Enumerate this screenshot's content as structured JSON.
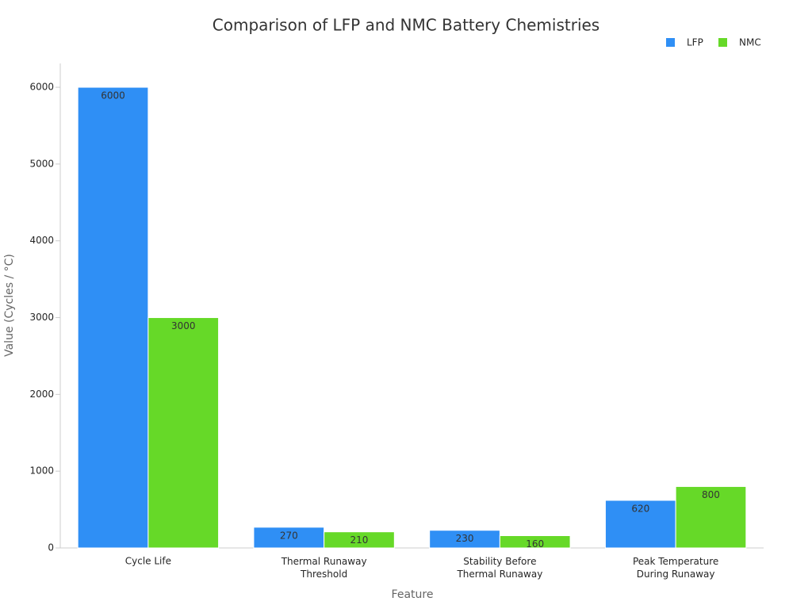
{
  "chart_data": {
    "type": "bar",
    "title": "Comparison of LFP and NMC Battery Chemistries",
    "x_label": "Feature",
    "y_label": "Value (Cycles / °C)",
    "categories": [
      "Cycle Life",
      "Thermal Runaway\nThreshold",
      "Stability Before\nThermal Runaway",
      "Peak Temperature\nDuring Runaway"
    ],
    "series": [
      {
        "name": "LFP",
        "color": "#2f8ff5",
        "values": [
          6000,
          270,
          230,
          620
        ]
      },
      {
        "name": "NMC",
        "color": "#66d928",
        "values": [
          3000,
          210,
          160,
          800
        ]
      }
    ],
    "ylim": [
      0,
      6300
    ],
    "yticks": [
      0,
      1000,
      2000,
      3000,
      4000,
      5000,
      6000
    ],
    "grid": false,
    "legend": "top-right"
  }
}
